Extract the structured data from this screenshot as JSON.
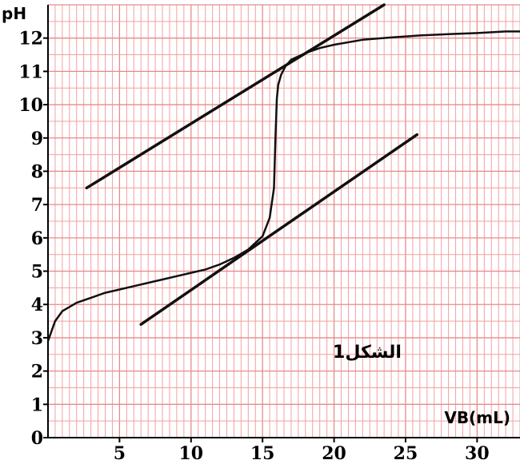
{
  "chart_data": {
    "type": "line",
    "title": "",
    "xlabel": "VB(mL)",
    "ylabel": "pH",
    "xlim": [
      0,
      33
    ],
    "ylim": [
      0,
      13
    ],
    "grid": true,
    "grid_color": "#f2a0a0",
    "line_color": "#111111",
    "x_ticks": [
      {
        "value": 5,
        "label": "5"
      },
      {
        "value": 10,
        "label": "10"
      },
      {
        "value": 15,
        "label": "15"
      },
      {
        "value": 20,
        "label": "20"
      },
      {
        "value": 25,
        "label": "25"
      },
      {
        "value": 30,
        "label": "30"
      }
    ],
    "y_ticks": [
      {
        "value": 0,
        "label": "0"
      },
      {
        "value": 1,
        "label": "1"
      },
      {
        "value": 2,
        "label": "2"
      },
      {
        "value": 3,
        "label": "3"
      },
      {
        "value": 4,
        "label": "4"
      },
      {
        "value": 5,
        "label": "5"
      },
      {
        "value": 6,
        "label": "6"
      },
      {
        "value": 7,
        "label": "7"
      },
      {
        "value": 8,
        "label": "8"
      },
      {
        "value": 9,
        "label": "9"
      },
      {
        "value": 10,
        "label": "10"
      },
      {
        "value": 11,
        "label": "11"
      },
      {
        "value": 12,
        "label": "12"
      }
    ],
    "annotation": "الشكل1",
    "series": [
      {
        "x": [
          0,
          0.5,
          1,
          2,
          3,
          4,
          5,
          6,
          7,
          8,
          9,
          10,
          11,
          12,
          13,
          14,
          15,
          15.5,
          15.8,
          15.9,
          16.0,
          16.1,
          16.3,
          16.6,
          17,
          18,
          19,
          20,
          22,
          24,
          26,
          28,
          30,
          32,
          33
        ],
        "y": [
          2.9,
          3.5,
          3.8,
          4.05,
          4.2,
          4.35,
          4.45,
          4.55,
          4.65,
          4.75,
          4.85,
          4.95,
          5.05,
          5.2,
          5.4,
          5.65,
          6.05,
          6.6,
          7.5,
          9.0,
          10.2,
          10.6,
          10.9,
          11.15,
          11.35,
          11.55,
          11.7,
          11.8,
          11.95,
          12.02,
          12.08,
          12.12,
          12.15,
          12.2,
          12.2
        ]
      }
    ],
    "tangents": [
      {
        "x": [
          2.7,
          23.5
        ],
        "y": [
          7.5,
          13.0
        ]
      },
      {
        "x": [
          6.5,
          25.8
        ],
        "y": [
          3.4,
          9.1
        ]
      }
    ]
  }
}
